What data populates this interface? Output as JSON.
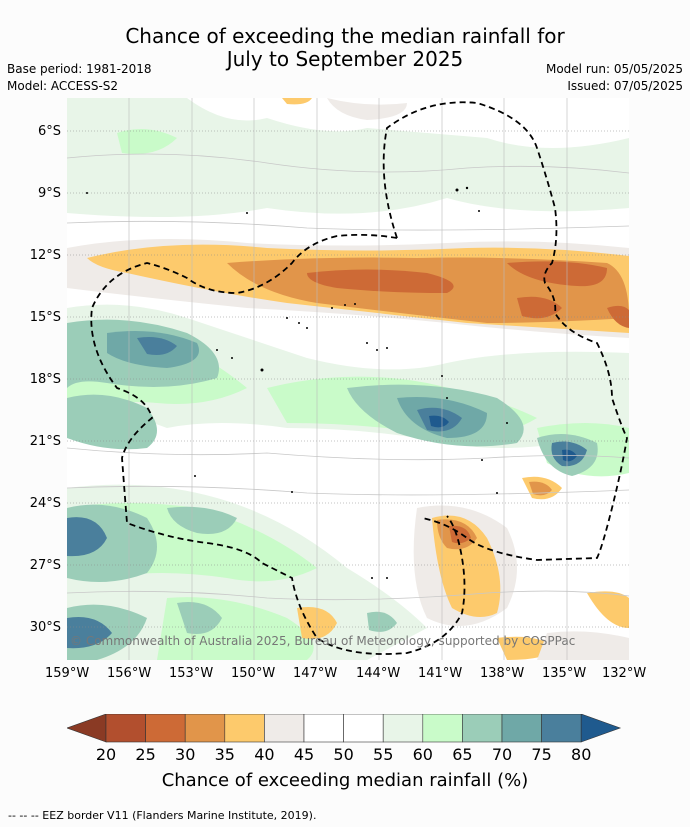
{
  "title": {
    "line1": "Chance of exceeding the median rainfall for",
    "line2": "July to September 2025"
  },
  "meta": {
    "base_period": "Base period: 1981-2018",
    "model": "Model: ACCESS-S2",
    "model_run": "Model run: 05/05/2025",
    "issued": "Issued: 07/05/2025"
  },
  "map": {
    "copyright": "© Commonwealth of Australia 2025, Bureau of Meteorology, supported by COSPPac",
    "lat_labels": [
      "6°S",
      "9°S",
      "12°S",
      "15°S",
      "18°S",
      "21°S",
      "24°S",
      "27°S",
      "30°S"
    ],
    "lon_labels": [
      "159°W",
      "156°W",
      "153°W",
      "150°W",
      "147°W",
      "144°W",
      "141°W",
      "138°W",
      "135°W",
      "132°W"
    ]
  },
  "colorbar": {
    "label": "Chance of exceeding median rainfall (%)",
    "ticks": [
      "20",
      "25",
      "30",
      "35",
      "40",
      "45",
      "50",
      "55",
      "60",
      "65",
      "70",
      "75",
      "80"
    ],
    "colors": [
      "#8a3a24",
      "#b24f2e",
      "#cd6a36",
      "#e1954a",
      "#fdca6c",
      "#efebe8",
      "#ffffff",
      "#ffffff",
      "#e8f5e8",
      "#c9fbc9",
      "#9bcdb8",
      "#6fa8a7",
      "#4a7f9c",
      "#1f5a8e"
    ]
  },
  "footer": {
    "legend": "-- -- -- EEZ border V11 (Flanders Marine Institute, 2019)."
  }
}
